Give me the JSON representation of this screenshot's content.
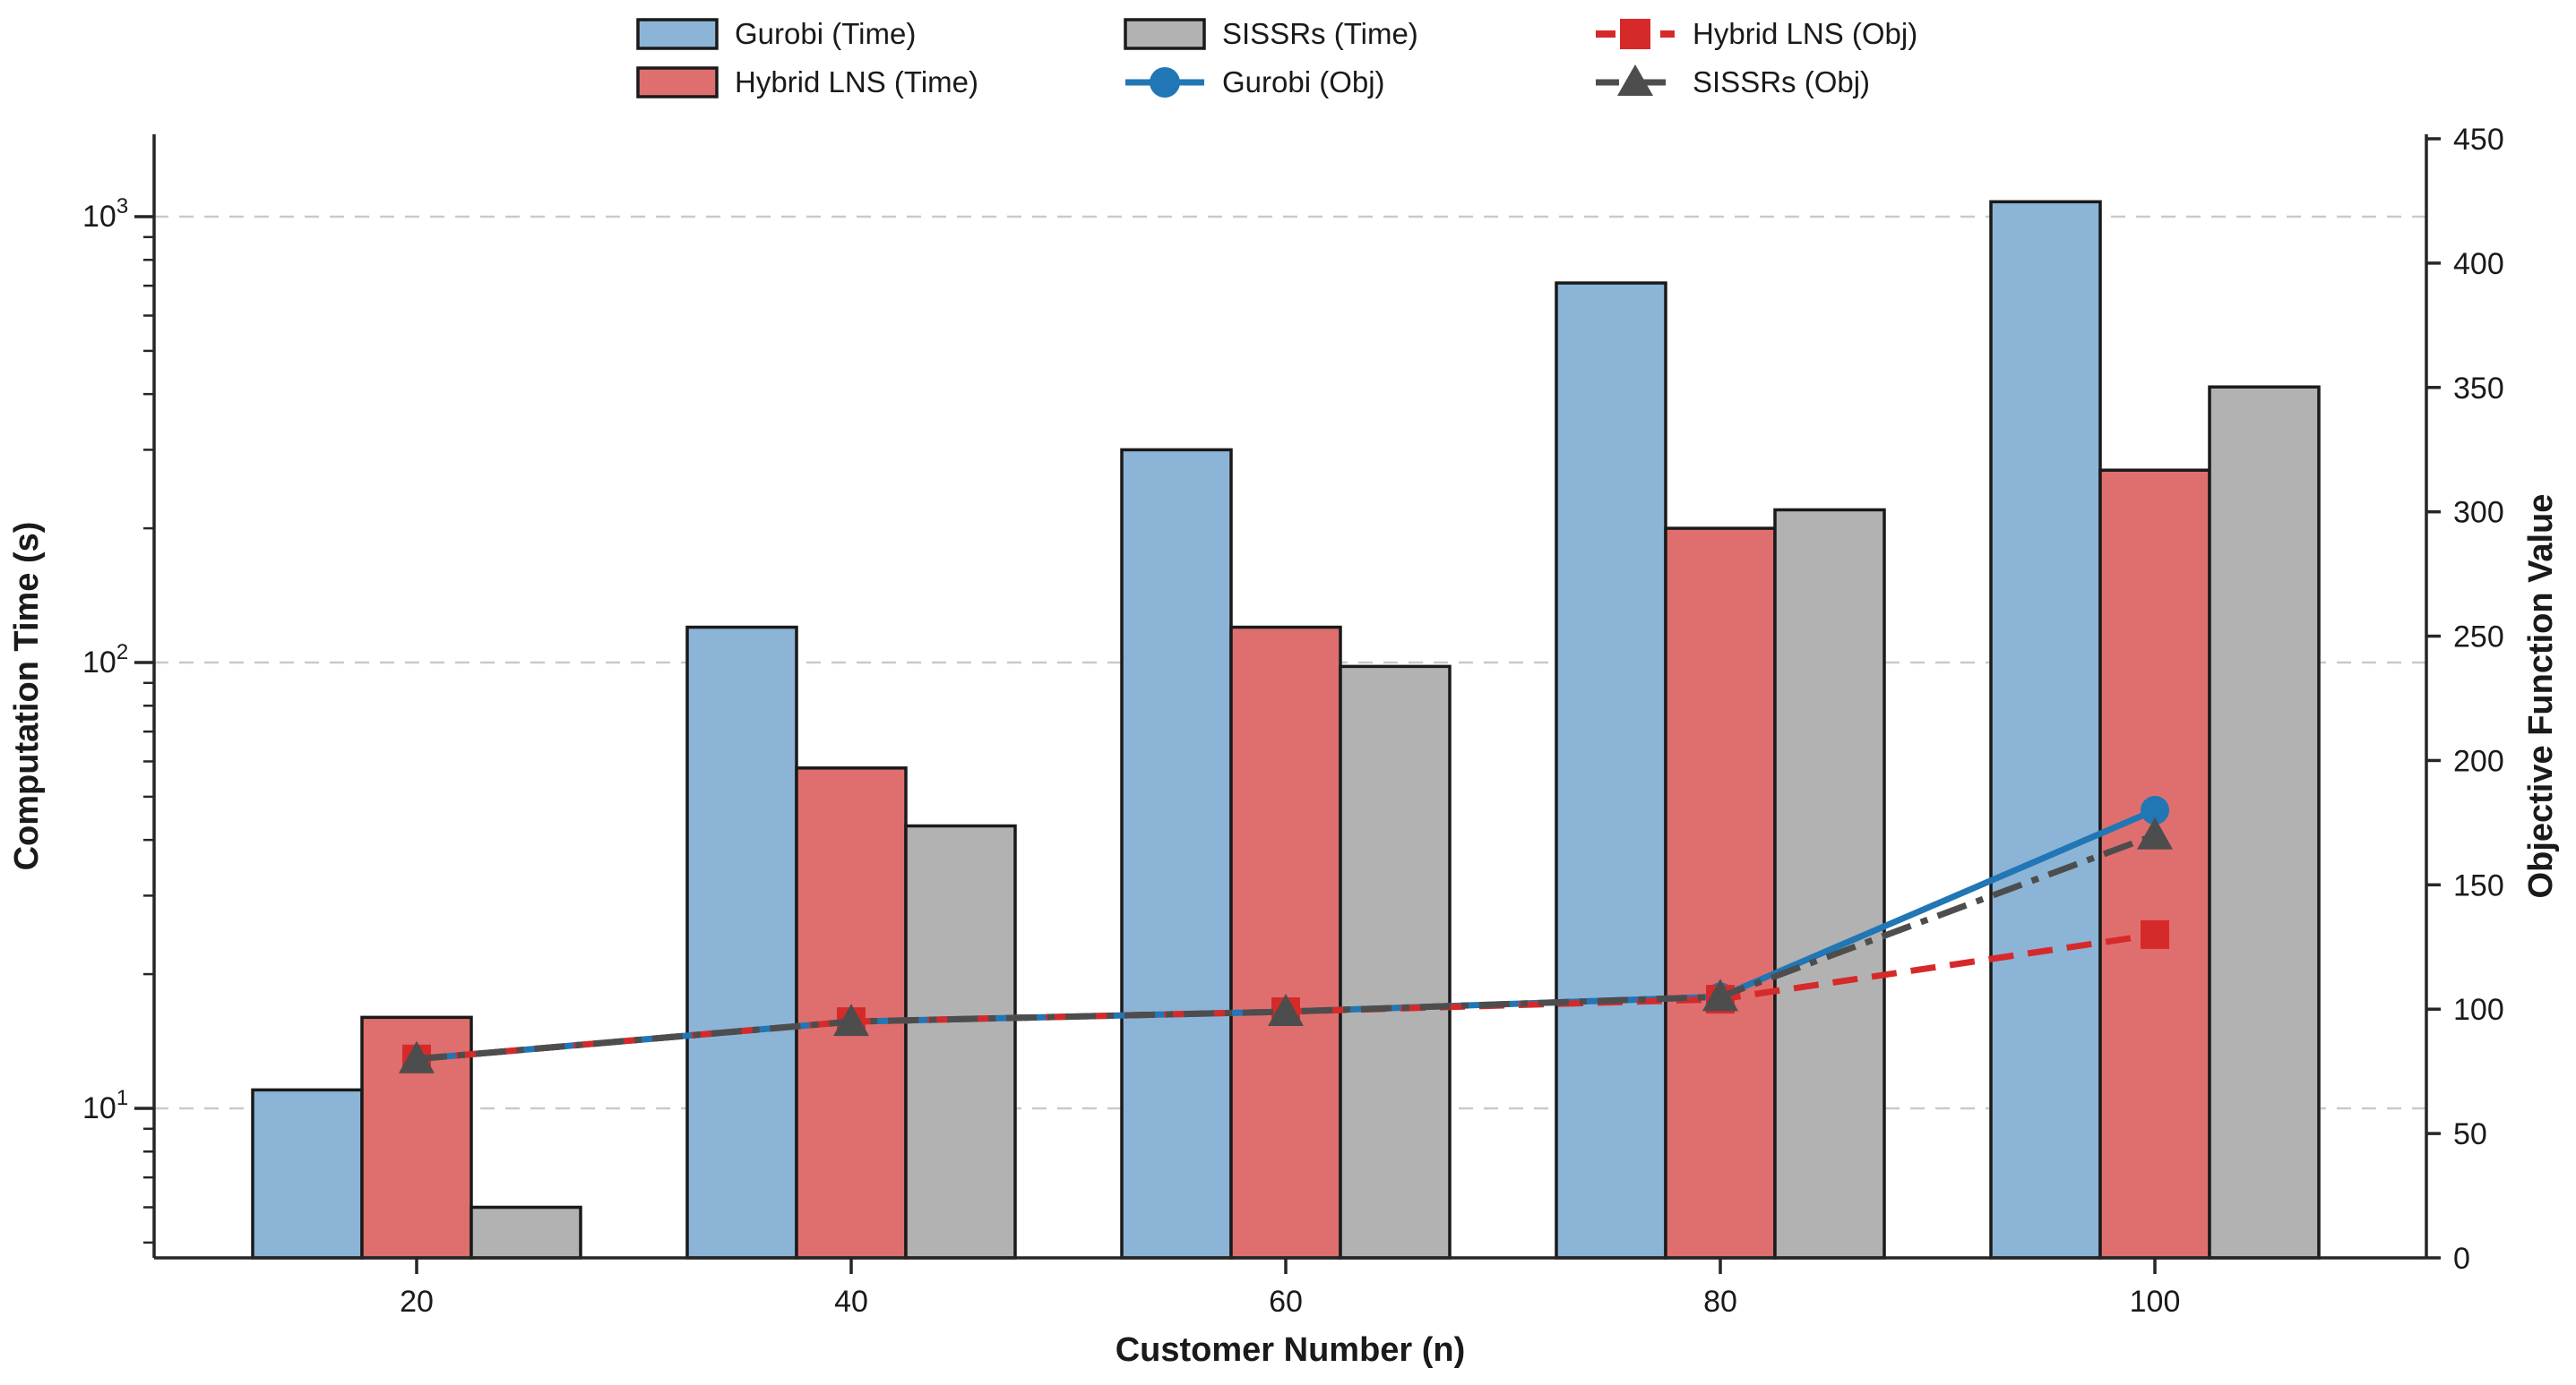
{
  "chart_data": {
    "type": "bar+line",
    "title": "",
    "xlabel": "Customer Number (n)",
    "ylabel_left": "Computation Time (s)",
    "ylabel_right": "Objective Function Value",
    "categories": [
      20,
      40,
      60,
      80,
      100
    ],
    "left_axis": {
      "scale": "log",
      "major_ticks": [
        10,
        100,
        1000
      ],
      "major_tick_labels": [
        "10<sup>1</sup>",
        "10<sup>2</sup>",
        "10<sup>3</sup>"
      ],
      "range_bottom": 4.8,
      "range_top": 1530,
      "grid": true,
      "grid_color": "#c9c9c9"
    },
    "right_axis": {
      "scale": "linear",
      "ticks": [
        0,
        50,
        100,
        150,
        200,
        250,
        300,
        350,
        400,
        450
      ],
      "range": [
        0,
        450
      ],
      "grid": false
    },
    "bar_series": [
      {
        "name": "Gurobi (Time)",
        "color": "#8CB4D6",
        "edge_color": "#1a1a1a",
        "values": [
          11,
          120,
          300,
          710,
          1080
        ]
      },
      {
        "name": "Hybrid LNS (Time)",
        "color": "#DF6F6F",
        "edge_color": "#1a1a1a",
        "values": [
          16,
          58,
          120,
          200,
          270
        ]
      },
      {
        "name": "SISSRs (Time)",
        "color": "#B2B2B2",
        "edge_color": "#1a1a1a",
        "values": [
          6,
          43,
          98,
          220,
          415
        ]
      }
    ],
    "line_series": [
      {
        "name": "Gurobi (Obj)",
        "color": "#2176B5",
        "style": "solid",
        "marker": "circle",
        "values": [
          80,
          95,
          99,
          105,
          180
        ]
      },
      {
        "name": "Hybrid LNS (Obj)",
        "color": "#D62A2A",
        "style": "dashed",
        "marker": "square",
        "values": [
          80,
          95,
          99,
          104,
          130
        ]
      },
      {
        "name": "SISSRs (Obj)",
        "color": "#4D4D4D",
        "style": "dashdot",
        "marker": "triangle",
        "values": [
          80,
          95,
          99,
          105,
          170
        ]
      }
    ],
    "legend": {
      "position": "top-center",
      "items": [
        {
          "label": "Gurobi (Time)",
          "glyph": "patch",
          "color": "#8CB4D6",
          "col": 0,
          "row": 0
        },
        {
          "label": "Hybrid LNS (Time)",
          "glyph": "patch",
          "color": "#DF6F6F",
          "col": 0,
          "row": 1
        },
        {
          "label": "SISSRs (Time)",
          "glyph": "patch",
          "color": "#B2B2B2",
          "col": 1,
          "row": 0
        },
        {
          "label": "Gurobi (Obj)",
          "glyph": "circle",
          "color": "#2176B5",
          "col": 1,
          "row": 1
        },
        {
          "label": "Hybrid LNS (Obj)",
          "glyph": "square",
          "color": "#D62A2A",
          "col": 2,
          "row": 0
        },
        {
          "label": "SISSRs (Obj)",
          "glyph": "triangle",
          "color": "#4D4D4D",
          "col": 2,
          "row": 1
        }
      ]
    },
    "colors": {
      "axis": "#262626",
      "text": "#1a1a1a",
      "grid": "#c9c9c9",
      "background": "#ffffff"
    }
  }
}
